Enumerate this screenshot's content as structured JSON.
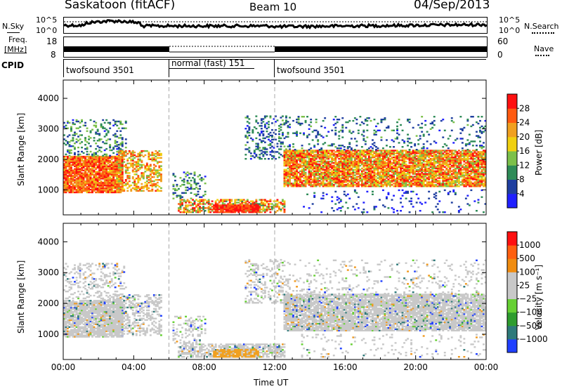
{
  "header": {
    "station": "Saskatoon (fitACF)",
    "beam": "Beam 10",
    "date": "04/Sep/2013"
  },
  "side_labels": {
    "nsky": "N.Sky",
    "nsearch": "N.Search",
    "freq_line1": "Freq.",
    "freq_line2": "[MHz]",
    "nave": "Nave",
    "cpid": "CPID"
  },
  "cpid_segments": [
    {
      "label": "twofsound 3501",
      "start_hour": 0,
      "end_hour": 6
    },
    {
      "label": "normal (fast) 151",
      "start_hour": 6,
      "end_hour": 12
    },
    {
      "label": "twofsound 3501",
      "start_hour": 12,
      "end_hour": 24
    }
  ],
  "noise_axis": {
    "left_ticks": [
      "10^5",
      "10^0"
    ],
    "right_ticks": [
      "10^5",
      "10^0"
    ]
  },
  "freq_axis": {
    "left_ticks": [
      "18",
      "8"
    ],
    "right_ticks": [
      "60",
      "0"
    ]
  },
  "chart_data": [
    {
      "type": "heatmap",
      "name": "power",
      "ylabel": "Slant Range [km]",
      "ylim": [
        180,
        4600
      ],
      "yticks": [
        1000,
        2000,
        3000,
        4000
      ],
      "xlim": [
        0,
        24
      ],
      "colorbar": {
        "label": "Power [dB]",
        "ticks": [
          "28",
          "24",
          "20",
          "16",
          "12",
          "8",
          "4"
        ],
        "colors": [
          "#2020ff",
          "#1f3fa0",
          "#2e8b57",
          "#7cc04a",
          "#f0d010",
          "#f0a020",
          "#ff5a10",
          "#ff1010"
        ]
      }
    },
    {
      "type": "heatmap",
      "name": "velocity",
      "ylabel": "Slant Range [km]",
      "ylim": [
        180,
        4600
      ],
      "yticks": [
        1000,
        2000,
        3000,
        4000
      ],
      "xlim": [
        0,
        24
      ],
      "xlabel": "Time UT",
      "xticks": [
        "00:00",
        "04:00",
        "08:00",
        "12:00",
        "16:00",
        "20:00",
        "00:00"
      ],
      "colorbar": {
        "label": "Velocity [m s⁻¹]",
        "ticks": [
          "1000",
          "500",
          "100",
          "25",
          "−25",
          "−100",
          "−500",
          "−1000"
        ],
        "colors": [
          "#2040ff",
          "#2e7a7a",
          "#2e9c2e",
          "#66d033",
          "#c8c8c8",
          "#c8c8c8",
          "#f08c10",
          "#ff6010",
          "#ff1010"
        ]
      }
    }
  ]
}
